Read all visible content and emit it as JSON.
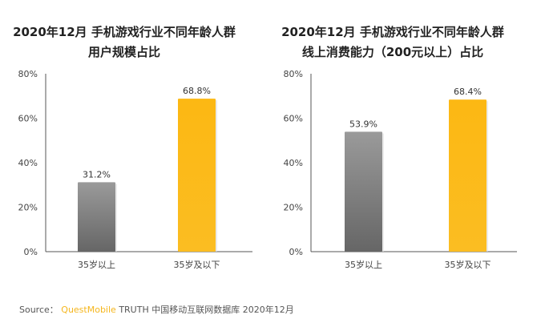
{
  "chart_data": [
    {
      "type": "bar",
      "title_line1": "2020年12月 手机游戏行业不同年龄人群",
      "title_line2": "用户规模占比",
      "categories": [
        "35岁以上",
        "35岁及以下"
      ],
      "values": [
        31.2,
        68.8
      ],
      "labels": [
        "31.2%",
        "68.8%"
      ],
      "ylim": [
        0,
        80
      ],
      "yticks": [
        "0%",
        "20%",
        "40%",
        "60%",
        "80%"
      ],
      "colors": [
        "#808080",
        "#fbb919"
      ],
      "grid": false
    },
    {
      "type": "bar",
      "title_line1": "2020年12月 手机游戏行业不同年龄人群",
      "title_line2": "线上消费能力（200元以上）占比",
      "categories": [
        "35岁以上",
        "35岁及以下"
      ],
      "values": [
        53.9,
        68.4
      ],
      "labels": [
        "53.9%",
        "68.4%"
      ],
      "ylim": [
        0,
        80
      ],
      "yticks": [
        "0%",
        "20%",
        "40%",
        "60%",
        "80%"
      ],
      "colors": [
        "#808080",
        "#fbb919"
      ],
      "grid": false
    }
  ],
  "source": {
    "label": "Source：",
    "brand": "QuestMobile",
    "text": "TRUTH 中国移动互联网数据库 2020年12月"
  },
  "watermark": "QUESTMOBILE"
}
